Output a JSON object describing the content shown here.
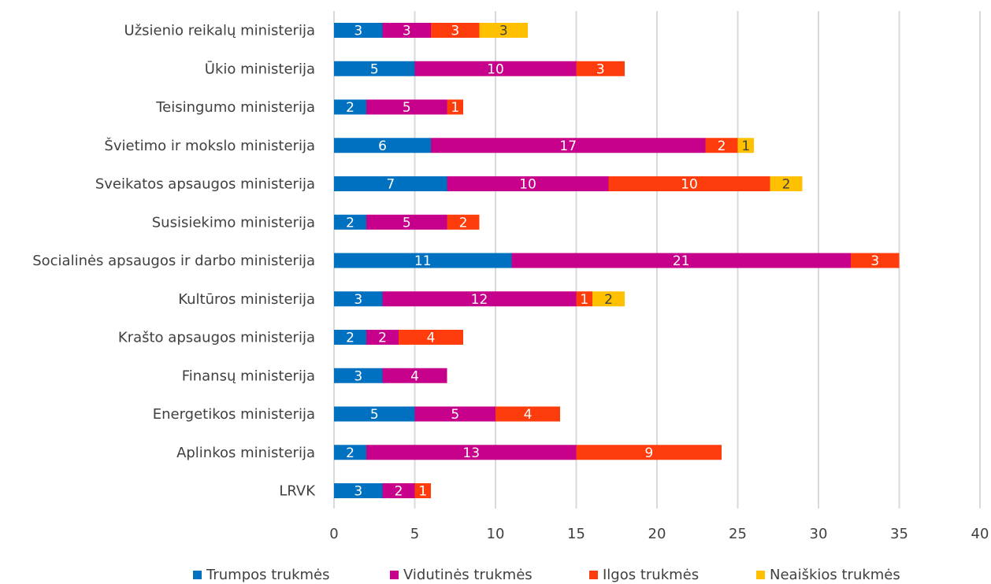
{
  "chart_data": {
    "type": "bar",
    "orientation": "horizontal",
    "stacked": true,
    "categories": [
      "Užsienio reikalų ministerija",
      "Ūkio ministerija",
      "Teisingumo ministerija",
      "Švietimo ir mokslo ministerija",
      "Sveikatos apsaugos ministerija",
      "Susisiekimo ministerija",
      "Socialinės apsaugos ir darbo ministerija",
      "Kultūros ministerija",
      "Krašto apsaugos ministerija",
      "Finansų ministerija",
      "Energetikos ministerija",
      "Aplinkos ministerija",
      "LRVK"
    ],
    "series": [
      {
        "name": "Trumpos trukmės",
        "color": "#0070c0",
        "label_color": "#ffffff",
        "values": [
          3,
          5,
          2,
          6,
          7,
          2,
          11,
          3,
          2,
          3,
          5,
          2,
          3
        ]
      },
      {
        "name": "Vidutinės trukmės",
        "color": "#c6008a",
        "label_color": "#ffffff",
        "values": [
          3,
          10,
          5,
          17,
          10,
          5,
          21,
          12,
          2,
          4,
          5,
          13,
          2
        ]
      },
      {
        "name": "Ilgos trukmės",
        "color": "#fe3c0c",
        "label_color": "#ffffff",
        "values": [
          3,
          3,
          1,
          2,
          10,
          2,
          3,
          1,
          4,
          null,
          4,
          9,
          1
        ]
      },
      {
        "name": "Neaiškios trukmės",
        "color": "#ffc000",
        "label_color": "#404040",
        "values": [
          3,
          null,
          null,
          1,
          2,
          null,
          null,
          2,
          null,
          null,
          null,
          null,
          null
        ]
      }
    ],
    "xlim": [
      0,
      40
    ],
    "xticks": [
      0,
      5,
      10,
      15,
      20,
      25,
      30,
      35,
      40
    ],
    "grid": "vertical",
    "legend": "bottom",
    "title": "",
    "xlabel": "",
    "ylabel": ""
  }
}
